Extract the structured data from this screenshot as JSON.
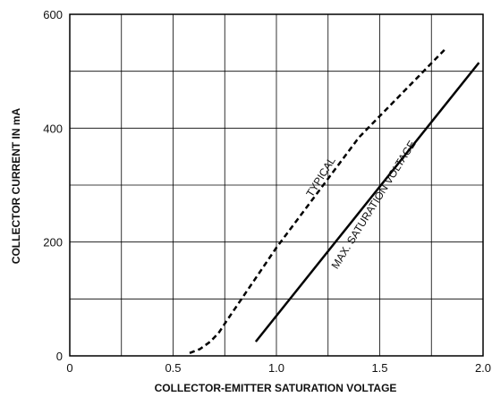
{
  "chart_data": {
    "type": "line",
    "xlabel": "COLLECTOR-EMITTER SATURATION VOLTAGE",
    "ylabel": "COLLECTOR CURRENT IN mA",
    "xlim": [
      0,
      2.0
    ],
    "ylim": [
      0,
      600
    ],
    "x_ticks": [
      "0",
      "0.5",
      "1.0",
      "1.5",
      "2.0"
    ],
    "y_ticks": [
      "0",
      "200",
      "400",
      "600"
    ],
    "grid": true,
    "series": [
      {
        "name": "TYPICAL",
        "style": "dashed",
        "color": "#000000",
        "x": [
          0.58,
          0.63,
          0.68,
          0.72,
          0.76,
          1.0,
          1.4,
          1.82
        ],
        "y": [
          5,
          12,
          25,
          40,
          62,
          190,
          384,
          540
        ]
      },
      {
        "name": "MAX. SATURATION VOLTAGE",
        "style": "solid",
        "color": "#000000",
        "x": [
          0.9,
          1.98
        ],
        "y": [
          25,
          515
        ]
      }
    ]
  }
}
